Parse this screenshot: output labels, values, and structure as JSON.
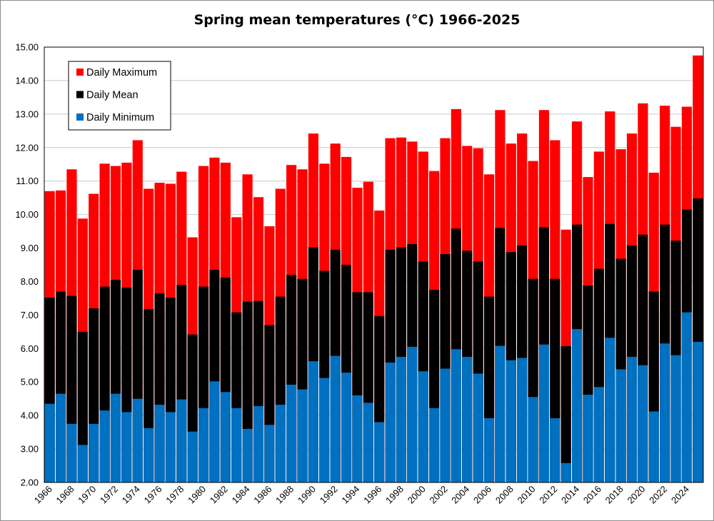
{
  "chart_data": {
    "type": "bar",
    "title": "Spring mean temperatures (°C) 1966-2025",
    "xlabel": "",
    "ylabel": "",
    "ylim": [
      2,
      15
    ],
    "yticks": [
      "2.00",
      "3.00",
      "4.00",
      "5.00",
      "6.00",
      "7.00",
      "8.00",
      "9.00",
      "10.00",
      "11.00",
      "12.00",
      "13.00",
      "14.00",
      "15.00"
    ],
    "grid": "horizontal",
    "legend_position": "top-left",
    "layering": "overlapping (not stacked) — each bar starts at axis minimum",
    "categories": [
      1966,
      1967,
      1968,
      1969,
      1970,
      1971,
      1972,
      1973,
      1974,
      1975,
      1976,
      1977,
      1978,
      1979,
      1980,
      1981,
      1982,
      1983,
      1984,
      1985,
      1986,
      1987,
      1988,
      1989,
      1990,
      1991,
      1992,
      1993,
      1994,
      1995,
      1996,
      1997,
      1998,
      1999,
      2000,
      2001,
      2002,
      2003,
      2004,
      2005,
      2006,
      2007,
      2008,
      2009,
      2010,
      2011,
      2012,
      2013,
      2014,
      2015,
      2016,
      2017,
      2018,
      2019,
      2020,
      2021,
      2022,
      2023,
      2024,
      2025
    ],
    "xtick_labels": [
      "1966",
      "1968",
      "1970",
      "1972",
      "1974",
      "1976",
      "1978",
      "1980",
      "1982",
      "1984",
      "1986",
      "1988",
      "1990",
      "1992",
      "1994",
      "1996",
      "1998",
      "2000",
      "2002",
      "2004",
      "2006",
      "2008",
      "2010",
      "2012",
      "2014",
      "2016",
      "2018",
      "2020",
      "2022",
      "2024"
    ],
    "series": [
      {
        "name": "Daily Maximum",
        "color": "#ff0000",
        "values": [
          10.7,
          10.72,
          11.35,
          9.88,
          10.62,
          11.52,
          11.45,
          11.55,
          12.22,
          10.77,
          10.95,
          10.92,
          11.28,
          9.32,
          11.45,
          11.7,
          11.55,
          9.92,
          11.2,
          10.52,
          9.65,
          10.77,
          11.48,
          11.35,
          12.42,
          11.52,
          12.12,
          11.72,
          10.8,
          10.98,
          10.12,
          12.28,
          12.3,
          12.18,
          11.88,
          11.3,
          12.28,
          13.15,
          12.05,
          11.98,
          11.2,
          13.12,
          12.12,
          12.42,
          11.6,
          13.12,
          12.22,
          9.55,
          12.78,
          11.12,
          11.88,
          13.08,
          11.95,
          12.42,
          13.32,
          11.25,
          13.25,
          12.62,
          13.22,
          14.75
        ]
      },
      {
        "name": "Daily Mean",
        "color": "#000000",
        "values": [
          7.52,
          7.7,
          7.57,
          6.5,
          7.2,
          7.85,
          8.05,
          7.82,
          8.35,
          7.18,
          7.65,
          7.52,
          7.9,
          6.42,
          7.85,
          8.35,
          8.12,
          7.08,
          7.4,
          7.42,
          6.7,
          7.55,
          8.2,
          8.08,
          9.02,
          8.32,
          8.95,
          8.5,
          7.68,
          7.68,
          6.97,
          8.95,
          9.02,
          9.12,
          8.6,
          7.75,
          8.82,
          9.58,
          8.92,
          8.6,
          7.55,
          9.6,
          8.88,
          9.08,
          8.08,
          9.62,
          8.08,
          6.07,
          9.7,
          7.88,
          8.38,
          9.72,
          8.68,
          9.08,
          9.4,
          7.7,
          9.7,
          9.22,
          10.15,
          10.48
        ]
      },
      {
        "name": "Daily Minimum",
        "color": "#0070c0",
        "values": [
          4.35,
          4.65,
          3.75,
          3.12,
          3.75,
          4.15,
          4.65,
          4.1,
          4.5,
          3.62,
          4.32,
          4.1,
          4.48,
          3.52,
          4.22,
          5.02,
          4.7,
          4.22,
          3.6,
          4.28,
          3.72,
          4.32,
          4.92,
          4.78,
          5.62,
          5.12,
          5.78,
          5.28,
          4.6,
          4.38,
          3.8,
          5.58,
          5.75,
          6.05,
          5.32,
          4.22,
          5.4,
          5.98,
          5.75,
          5.25,
          3.92,
          6.08,
          5.65,
          5.72,
          4.55,
          6.12,
          3.92,
          2.58,
          6.58,
          4.62,
          4.85,
          6.32,
          5.38,
          5.75,
          5.5,
          4.12,
          6.15,
          5.8,
          7.08,
          6.2
        ]
      }
    ]
  }
}
